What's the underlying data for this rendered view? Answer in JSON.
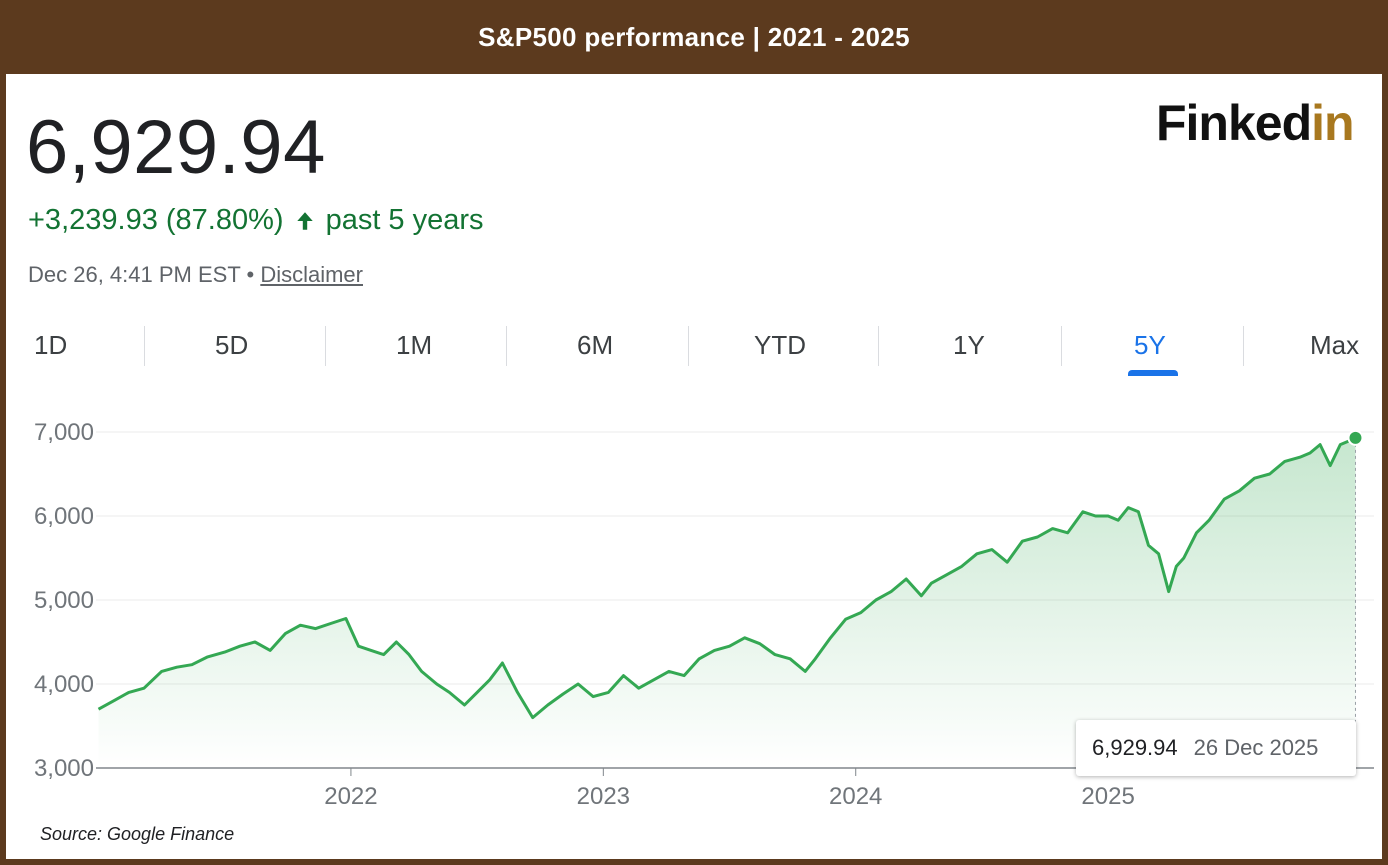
{
  "banner": {
    "title": "S&P500 performance | 2021 - 2025"
  },
  "quote": {
    "price": "6,929.94",
    "change": "+3,239.93 (87.80%)",
    "period": "past 5 years",
    "timestamp": "Dec 26, 4:41 PM EST •",
    "disclaimer": "Disclaimer"
  },
  "logo": {
    "part1": "Finked",
    "part2": "in"
  },
  "tabs": [
    {
      "label": "1D",
      "active": false
    },
    {
      "label": "5D",
      "active": false
    },
    {
      "label": "1M",
      "active": false
    },
    {
      "label": "6M",
      "active": false
    },
    {
      "label": "YTD",
      "active": false
    },
    {
      "label": "1Y",
      "active": false
    },
    {
      "label": "5Y",
      "active": true
    },
    {
      "label": "Max",
      "active": false
    }
  ],
  "tooltip": {
    "value": "6,929.94",
    "date": "26 Dec 2025"
  },
  "source": "Source: Google Finance",
  "colors": {
    "line": "#34a853",
    "positive": "#137333",
    "active_tab": "#1a73e8",
    "frame": "#5c3a1e"
  },
  "chart_data": {
    "type": "area",
    "yticks": [
      "7,000",
      "6,000",
      "5,000",
      "4,000",
      "3,000"
    ],
    "xticks": [
      "2022",
      "2023",
      "2024",
      "2025"
    ],
    "ylim": [
      3000,
      7000
    ],
    "xlim": [
      2020.99,
      2025.99
    ],
    "grid": true,
    "x": [
      2021.0,
      2021.06,
      2021.12,
      2021.18,
      2021.25,
      2021.31,
      2021.37,
      2021.43,
      2021.5,
      2021.56,
      2021.62,
      2021.68,
      2021.74,
      2021.8,
      2021.86,
      2021.92,
      2021.98,
      2022.03,
      2022.08,
      2022.13,
      2022.18,
      2022.23,
      2022.28,
      2022.34,
      2022.39,
      2022.45,
      2022.5,
      2022.55,
      2022.6,
      2022.66,
      2022.72,
      2022.78,
      2022.84,
      2022.9,
      2022.96,
      2023.02,
      2023.08,
      2023.14,
      2023.2,
      2023.26,
      2023.32,
      2023.38,
      2023.44,
      2023.5,
      2023.56,
      2023.62,
      2023.68,
      2023.74,
      2023.8,
      2023.84,
      2023.9,
      2023.96,
      2024.02,
      2024.08,
      2024.14,
      2024.2,
      2024.26,
      2024.3,
      2024.36,
      2024.42,
      2024.48,
      2024.54,
      2024.6,
      2024.66,
      2024.72,
      2024.78,
      2024.84,
      2024.9,
      2024.95,
      2025.0,
      2025.04,
      2025.08,
      2025.12,
      2025.16,
      2025.2,
      2025.24,
      2025.27,
      2025.3,
      2025.35,
      2025.4,
      2025.46,
      2025.52,
      2025.58,
      2025.64,
      2025.7,
      2025.76,
      2025.8,
      2025.84,
      2025.88,
      2025.92,
      2025.96,
      2025.98
    ],
    "series": [
      {
        "values": [
          3700,
          3800,
          3900,
          3950,
          4150,
          4200,
          4230,
          4320,
          4380,
          4450,
          4500,
          4400,
          4600,
          4700,
          4660,
          4720,
          4780,
          4450,
          4400,
          4350,
          4500,
          4350,
          4150,
          4000,
          3900,
          3750,
          3900,
          4050,
          4250,
          3900,
          3600,
          3750,
          3880,
          4000,
          3850,
          3900,
          4100,
          3950,
          4050,
          4150,
          4100,
          4300,
          4400,
          4450,
          4550,
          4480,
          4350,
          4300,
          4150,
          4300,
          4550,
          4770,
          4850,
          5000,
          5100,
          5250,
          5050,
          5200,
          5300,
          5400,
          5550,
          5600,
          5450,
          5700,
          5750,
          5850,
          5800,
          6050,
          6000,
          6000,
          5950,
          6100,
          6050,
          5650,
          5550,
          5100,
          5400,
          5500,
          5800,
          5950,
          6200,
          6300,
          6450,
          6500,
          6650,
          6700,
          6750,
          6850,
          6600,
          6850,
          6900,
          6929.94
        ]
      }
    ]
  }
}
